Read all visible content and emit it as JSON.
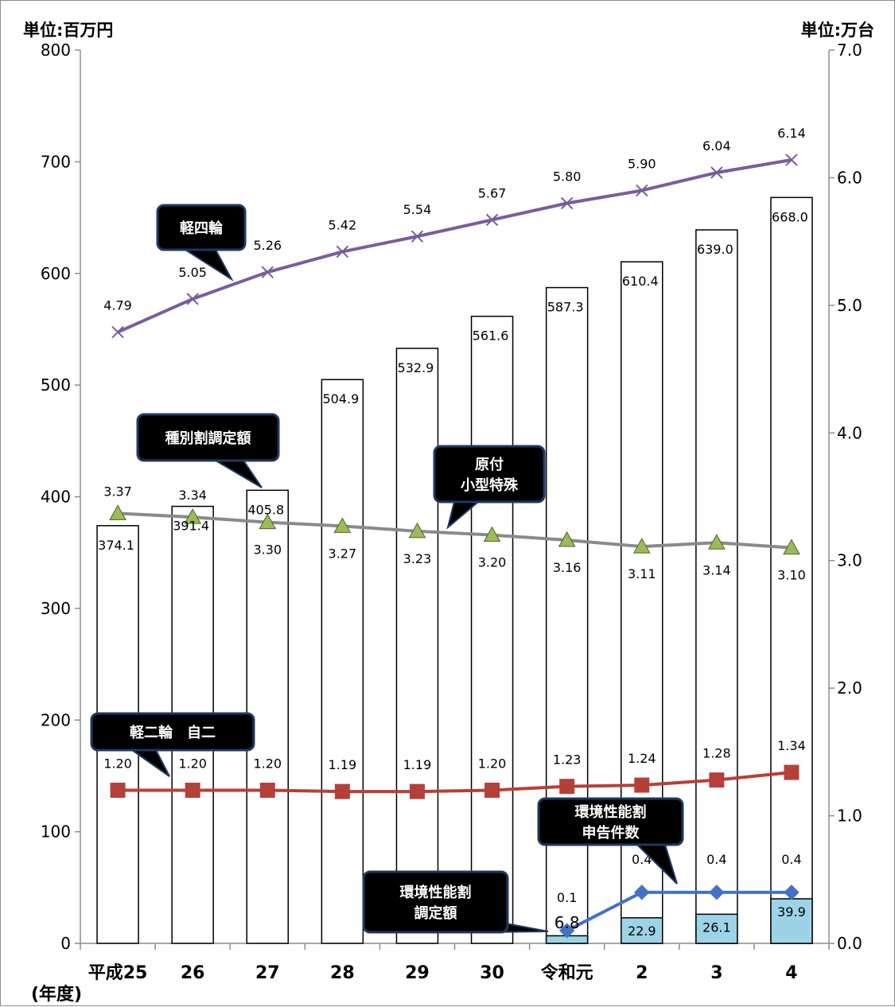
{
  "chart_data": {
    "type": "bar",
    "left_unit": "単位:百万円",
    "right_unit": "単位:万台",
    "x_axis_label": "(年度)",
    "categories": [
      "平成25",
      "26",
      "27",
      "28",
      "29",
      "30",
      "令和元",
      "2",
      "3",
      "4"
    ],
    "y_left": {
      "min": 0,
      "max": 800,
      "ticks": [
        "0",
        "100",
        "200",
        "300",
        "400",
        "500",
        "600",
        "700",
        "800"
      ]
    },
    "y_right": {
      "min": 0,
      "max": 7,
      "ticks": [
        "0.0",
        "1.0",
        "2.0",
        "3.0",
        "4.0",
        "5.0",
        "6.0",
        "7.0"
      ]
    },
    "bars": [
      {
        "axis": "left",
        "color": "#ffffff",
        "values": [
          374.1,
          391.4,
          405.8,
          504.9,
          532.9,
          561.6,
          587.3,
          610.4,
          639.0,
          668.0
        ],
        "labels": [
          "374.1",
          "391.4",
          "405.8",
          "504.9",
          "532.9",
          "561.6",
          "587.3",
          "610.4",
          "639.0",
          "668.0"
        ]
      },
      {
        "axis": "left",
        "color": "#9dd3e6",
        "values": [
          null,
          null,
          null,
          null,
          null,
          null,
          6.8,
          22.9,
          26.1,
          39.9
        ],
        "labels": [
          "",
          "",
          "",
          "",
          "",
          "",
          "6.8",
          "22.9",
          "26.1",
          "39.9"
        ]
      }
    ],
    "lines": [
      {
        "axis": "right",
        "color": "#7a5c9e",
        "marker": "x",
        "values": [
          4.79,
          5.05,
          5.26,
          5.42,
          5.54,
          5.67,
          5.8,
          5.9,
          6.04,
          6.14
        ],
        "labels": [
          "4.79",
          "5.05",
          "5.26",
          "5.42",
          "5.54",
          "5.67",
          "5.80",
          "5.90",
          "6.04",
          "6.14"
        ]
      },
      {
        "axis": "right",
        "color": "#8a8a8a",
        "marker": "triangle",
        "values": [
          3.37,
          3.34,
          3.3,
          3.27,
          3.23,
          3.2,
          3.16,
          3.11,
          3.14,
          3.1
        ],
        "labels": [
          "3.37",
          "3.34",
          "3.30",
          "3.27",
          "3.23",
          "3.20",
          "3.16",
          "3.11",
          "3.14",
          "3.10"
        ]
      },
      {
        "axis": "right",
        "color": "#b5403a",
        "marker": "square",
        "values": [
          1.2,
          1.2,
          1.2,
          1.19,
          1.19,
          1.2,
          1.23,
          1.24,
          1.28,
          1.34
        ],
        "labels": [
          "1.20",
          "1.20",
          "1.20",
          "1.19",
          "1.19",
          "1.20",
          "1.23",
          "1.24",
          "1.28",
          "1.34"
        ]
      },
      {
        "axis": "right",
        "color": "#4472c4",
        "marker": "diamond",
        "values": [
          null,
          null,
          null,
          null,
          null,
          null,
          0.1,
          0.4,
          0.4,
          0.4
        ],
        "labels": [
          "",
          "",
          "",
          "",
          "",
          "",
          "0.1",
          "0.4",
          "0.4",
          "0.4"
        ]
      }
    ],
    "callouts": [
      {
        "lines": [
          "軽四輪"
        ]
      },
      {
        "lines": [
          "種別割調定額"
        ]
      },
      {
        "lines": [
          "原付",
          "小型特殊"
        ]
      },
      {
        "lines": [
          "軽二輪　自二"
        ]
      },
      {
        "lines": [
          "環境性能割",
          "申告件数"
        ]
      },
      {
        "lines": [
          "環境性能割",
          "調定額"
        ]
      }
    ]
  }
}
